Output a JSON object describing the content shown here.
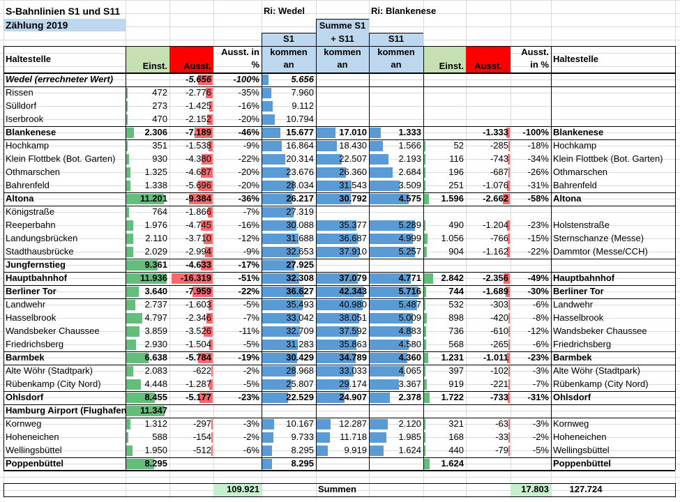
{
  "title_line1": "S-Bahnlinien S1 und S11",
  "title_line2": "Zählung 2019",
  "dir_left": "Ri:  Wedel",
  "dir_right": "Ri:  Blankenese",
  "headers": {
    "haltestelle": "Haltestelle",
    "einst": "Einst.",
    "ausst": "Ausst.",
    "ausst_pct": "Ausst. in %",
    "s1": "S1",
    "summe": "Summe S1 + S11",
    "s11": "S11",
    "kommen_an": "kommen an"
  },
  "colors": {
    "green_header": "#c6e0b4",
    "red_header": "#ff0000",
    "blue_header": "#bdd7ee",
    "sum_green": "#c6efce",
    "bar_green": "#63be7b",
    "bar_red": "#f8696b",
    "bar_blue": "#5a9bd5"
  },
  "rows": [
    {
      "l": "Wedel (errechneter Wert)",
      "e": "",
      "a": "-5.656",
      "p": "-100%",
      "s1": "5.656",
      "sum": "",
      "s11": "",
      "e2": "",
      "a2": "",
      "p2": "",
      "r": "",
      "b": true,
      "i": true,
      "ev": 0,
      "av": 5656,
      "s1v": 5656,
      "sumv": 0,
      "s11v": 0,
      "e2v": 0,
      "a2v": 0
    },
    {
      "l": "Rissen",
      "e": "472",
      "a": "-2.776",
      "p": "-35%",
      "s1": "7.960",
      "sum": "",
      "s11": "",
      "e2": "",
      "a2": "",
      "p2": "",
      "r": "",
      "ev": 472,
      "av": 2776,
      "s1v": 7960,
      "sumv": 0,
      "s11v": 0,
      "e2v": 0,
      "a2v": 0
    },
    {
      "l": "Sülldorf",
      "e": "273",
      "a": "-1.425",
      "p": "-16%",
      "s1": "9.112",
      "sum": "",
      "s11": "",
      "e2": "",
      "a2": "",
      "p2": "",
      "r": "",
      "ev": 273,
      "av": 1425,
      "s1v": 9112,
      "sumv": 0,
      "s11v": 0,
      "e2v": 0,
      "a2v": 0
    },
    {
      "l": "Iserbrook",
      "e": "470",
      "a": "-2.152",
      "p": "-20%",
      "s1": "10.794",
      "sum": "",
      "s11": "",
      "e2": "",
      "a2": "",
      "p2": "",
      "r": "",
      "ev": 470,
      "av": 2152,
      "s1v": 10794,
      "sumv": 0,
      "s11v": 0,
      "e2v": 0,
      "a2v": 0
    },
    {
      "l": "Blankenese",
      "e": "2.306",
      "a": "-7.189",
      "p": "-46%",
      "s1": "15.677",
      "sum": "17.010",
      "s11": "1.333",
      "e2": "",
      "a2": "-1.333",
      "p2": "-100%",
      "r": "Blankenese",
      "b": true,
      "ev": 2306,
      "av": 7189,
      "s1v": 15677,
      "sumv": 17010,
      "s11v": 1333,
      "e2v": 0,
      "a2v": 1333
    },
    {
      "l": "Hochkamp",
      "e": "351",
      "a": "-1.538",
      "p": "-9%",
      "s1": "16.864",
      "sum": "18.430",
      "s11": "1.566",
      "e2": "52",
      "a2": "-285",
      "p2": "-18%",
      "r": "Hochkamp",
      "ev": 351,
      "av": 1538,
      "s1v": 16864,
      "sumv": 18430,
      "s11v": 1566,
      "e2v": 52,
      "a2v": 285
    },
    {
      "l": "Klein Flottbek (Bot. Garten)",
      "e": "930",
      "a": "-4.380",
      "p": "-22%",
      "s1": "20.314",
      "sum": "22.507",
      "s11": "2.193",
      "e2": "116",
      "a2": "-743",
      "p2": "-34%",
      "r": "Klein Flottbek (Bot. Garten)",
      "ev": 930,
      "av": 4380,
      "s1v": 20314,
      "sumv": 22507,
      "s11v": 2193,
      "e2v": 116,
      "a2v": 743
    },
    {
      "l": "Othmarschen",
      "e": "1.325",
      "a": "-4.687",
      "p": "-20%",
      "s1": "23.676",
      "sum": "26.360",
      "s11": "2.684",
      "e2": "196",
      "a2": "-687",
      "p2": "-26%",
      "r": "Othmarschen",
      "ev": 1325,
      "av": 4687,
      "s1v": 23676,
      "sumv": 26360,
      "s11v": 2684,
      "e2v": 196,
      "a2v": 687
    },
    {
      "l": "Bahrenfeld",
      "e": "1.338",
      "a": "-5.696",
      "p": "-20%",
      "s1": "28.034",
      "sum": "31.543",
      "s11": "3.509",
      "e2": "251",
      "a2": "-1.076",
      "p2": "-31%",
      "r": "Bahrenfeld",
      "ev": 1338,
      "av": 5696,
      "s1v": 28034,
      "sumv": 31543,
      "s11v": 3509,
      "e2v": 251,
      "a2v": 1076
    },
    {
      "l": "Altona",
      "e": "11.201",
      "a": "-9.384",
      "p": "-36%",
      "s1": "26.217",
      "sum": "30.792",
      "s11": "4.575",
      "e2": "1.596",
      "a2": "-2.662",
      "p2": "-58%",
      "r": "Altona",
      "b": true,
      "ev": 11201,
      "av": 9384,
      "s1v": 26217,
      "sumv": 30792,
      "s11v": 4575,
      "e2v": 1596,
      "a2v": 2662
    },
    {
      "l": "Königstraße",
      "e": "764",
      "a": "-1.866",
      "p": "-7%",
      "s1": "27.319",
      "sum": "",
      "s11": "",
      "e2": "",
      "a2": "",
      "p2": "",
      "r": "",
      "ev": 764,
      "av": 1866,
      "s1v": 27319,
      "sumv": 0,
      "s11v": 0,
      "e2v": 0,
      "a2v": 0
    },
    {
      "l": "Reeperbahn",
      "e": "1.976",
      "a": "-4.745",
      "p": "-16%",
      "s1": "30.088",
      "sum": "35.377",
      "s11": "5.289",
      "e2": "490",
      "a2": "-1.204",
      "p2": "-23%",
      "r": "Holstenstraße",
      "ev": 1976,
      "av": 4745,
      "s1v": 30088,
      "sumv": 35377,
      "s11v": 5289,
      "e2v": 490,
      "a2v": 1204
    },
    {
      "l": "Landungsbrücken",
      "e": "2.110",
      "a": "-3.710",
      "p": "-12%",
      "s1": "31.688",
      "sum": "36.687",
      "s11": "4.999",
      "e2": "1.056",
      "a2": "-766",
      "p2": "-15%",
      "r": "Sternschanze (Messe)",
      "ev": 2110,
      "av": 3710,
      "s1v": 31688,
      "sumv": 36687,
      "s11v": 4999,
      "e2v": 1056,
      "a2v": 766
    },
    {
      "l": "Stadthausbrücke",
      "e": "2.029",
      "a": "-2.994",
      "p": "-9%",
      "s1": "32.653",
      "sum": "37.910",
      "s11": "5.257",
      "e2": "904",
      "a2": "-1.162",
      "p2": "-22%",
      "r": "Dammtor (Messe/CCH)",
      "ev": 2029,
      "av": 2994,
      "s1v": 32653,
      "sumv": 37910,
      "s11v": 5257,
      "e2v": 904,
      "a2v": 1162
    },
    {
      "l": "Jungfernstieg",
      "e": "9.361",
      "a": "-4.633",
      "p": "-17%",
      "s1": "27.925",
      "sum": "",
      "s11": "",
      "e2": "",
      "a2": "",
      "p2": "",
      "r": "",
      "b": true,
      "ev": 9361,
      "av": 4633,
      "s1v": 27925,
      "sumv": 0,
      "s11v": 0,
      "e2v": 0,
      "a2v": 0
    },
    {
      "l": "Hauptbahnhof",
      "e": "11.936",
      "a": "-16.319",
      "p": "-51%",
      "s1": "32.308",
      "sum": "37.079",
      "s11": "4.771",
      "e2": "2.842",
      "a2": "-2.356",
      "p2": "-49%",
      "r": "Hauptbahnhof",
      "b": true,
      "ev": 11936,
      "av": 16319,
      "s1v": 32308,
      "sumv": 37079,
      "s11v": 4771,
      "e2v": 2842,
      "a2v": 2356
    },
    {
      "l": "Berliner Tor",
      "e": "3.640",
      "a": "-7.959",
      "p": "-22%",
      "s1": "36.627",
      "sum": "42.343",
      "s11": "5.716",
      "e2": "744",
      "a2": "-1.689",
      "p2": "-30%",
      "r": "Berliner Tor",
      "b": true,
      "ev": 3640,
      "av": 7959,
      "s1v": 36627,
      "sumv": 42343,
      "s11v": 5716,
      "e2v": 744,
      "a2v": 1689
    },
    {
      "l": "Landwehr",
      "e": "2.737",
      "a": "-1.603",
      "p": "-5%",
      "s1": "35.493",
      "sum": "40.980",
      "s11": "5.487",
      "e2": "532",
      "a2": "-303",
      "p2": "-6%",
      "r": "Landwehr",
      "ev": 2737,
      "av": 1603,
      "s1v": 35493,
      "sumv": 40980,
      "s11v": 5487,
      "e2v": 532,
      "a2v": 303
    },
    {
      "l": "Hasselbrook",
      "e": "4.797",
      "a": "-2.346",
      "p": "-7%",
      "s1": "33.042",
      "sum": "38.051",
      "s11": "5.009",
      "e2": "898",
      "a2": "-420",
      "p2": "-8%",
      "r": "Hasselbrook",
      "ev": 4797,
      "av": 2346,
      "s1v": 33042,
      "sumv": 38051,
      "s11v": 5009,
      "e2v": 898,
      "a2v": 420
    },
    {
      "l": "Wandsbeker Chaussee",
      "e": "3.859",
      "a": "-3.526",
      "p": "-11%",
      "s1": "32.709",
      "sum": "37.592",
      "s11": "4.883",
      "e2": "736",
      "a2": "-610",
      "p2": "-12%",
      "r": "Wandsbeker Chaussee",
      "ev": 3859,
      "av": 3526,
      "s1v": 32709,
      "sumv": 37592,
      "s11v": 4883,
      "e2v": 736,
      "a2v": 610
    },
    {
      "l": "Friedrichsberg",
      "e": "2.930",
      "a": "-1.504",
      "p": "-5%",
      "s1": "31.283",
      "sum": "35.863",
      "s11": "4.580",
      "e2": "568",
      "a2": "-265",
      "p2": "-6%",
      "r": "Friedrichsberg",
      "ev": 2930,
      "av": 1504,
      "s1v": 31283,
      "sumv": 35863,
      "s11v": 4580,
      "e2v": 568,
      "a2v": 265
    },
    {
      "l": "Barmbek",
      "e": "6.638",
      "a": "-5.784",
      "p": "-19%",
      "s1": "30.429",
      "sum": "34.789",
      "s11": "4.360",
      "e2": "1.231",
      "a2": "-1.011",
      "p2": "-23%",
      "r": "Barmbek",
      "b": true,
      "ev": 6638,
      "av": 5784,
      "s1v": 30429,
      "sumv": 34789,
      "s11v": 4360,
      "e2v": 1231,
      "a2v": 1011
    },
    {
      "l": "Alte Wöhr (Stadtpark)",
      "e": "2.083",
      "a": "-622",
      "p": "-2%",
      "s1": "28.968",
      "sum": "33.033",
      "s11": "4.065",
      "e2": "397",
      "a2": "-102",
      "p2": "-3%",
      "r": "Alte Wöhr (Stadtpark)",
      "ev": 2083,
      "av": 622,
      "s1v": 28968,
      "sumv": 33033,
      "s11v": 4065,
      "e2v": 397,
      "a2v": 102
    },
    {
      "l": "Rübenkamp (City Nord)",
      "e": "4.448",
      "a": "-1.287",
      "p": "-5%",
      "s1": "25.807",
      "sum": "29.174",
      "s11": "3.367",
      "e2": "919",
      "a2": "-221",
      "p2": "-7%",
      "r": "Rübenkamp (City Nord)",
      "ev": 4448,
      "av": 1287,
      "s1v": 25807,
      "sumv": 29174,
      "s11v": 3367,
      "e2v": 919,
      "a2v": 221
    },
    {
      "l": "Ohlsdorf",
      "e": "8.455",
      "a": "-5.177",
      "p": "-23%",
      "s1": "22.529",
      "sum": "24.907",
      "s11": "2.378",
      "e2": "1.722",
      "a2": "-733",
      "p2": "-31%",
      "r": "Ohlsdorf",
      "b": true,
      "ev": 8455,
      "av": 5177,
      "s1v": 22529,
      "sumv": 24907,
      "s11v": 2378,
      "e2v": 1722,
      "a2v": 733
    },
    {
      "l": "Hamburg Airport (Flughafen)",
      "e": "11.347",
      "a": "",
      "p": "",
      "s1": "",
      "sum": "",
      "s11": "",
      "e2": "",
      "a2": "",
      "p2": "",
      "r": "",
      "b": true,
      "ev": 11347,
      "av": 0,
      "s1v": 0,
      "sumv": 0,
      "s11v": 0,
      "e2v": 0,
      "a2v": 0
    },
    {
      "l": "Kornweg",
      "e": "1.312",
      "a": "-297",
      "p": "-3%",
      "s1": "10.167",
      "sum": "12.287",
      "s11": "2.120",
      "e2": "321",
      "a2": "-63",
      "p2": "-3%",
      "r": "Kornweg",
      "ev": 1312,
      "av": 297,
      "s1v": 10167,
      "sumv": 12287,
      "s11v": 2120,
      "e2v": 321,
      "a2v": 63
    },
    {
      "l": "Hoheneichen",
      "e": "588",
      "a": "-154",
      "p": "-2%",
      "s1": "9.733",
      "sum": "11.718",
      "s11": "1.985",
      "e2": "168",
      "a2": "-33",
      "p2": "-2%",
      "r": "Hoheneichen",
      "ev": 588,
      "av": 154,
      "s1v": 9733,
      "sumv": 11718,
      "s11v": 1985,
      "e2v": 168,
      "a2v": 33
    },
    {
      "l": "Wellingsbüttel",
      "e": "1.950",
      "a": "-512",
      "p": "-6%",
      "s1": "8.295",
      "sum": "9.919",
      "s11": "1.624",
      "e2": "440",
      "a2": "-79",
      "p2": "-5%",
      "r": "Wellingsbüttel",
      "ev": 1950,
      "av": 512,
      "s1v": 8295,
      "sumv": 9919,
      "s11v": 1624,
      "e2v": 440,
      "a2v": 79
    },
    {
      "l": "Poppenbüttel",
      "e": "8.295",
      "a": "",
      "p": "",
      "s1": "8.295",
      "sum": "",
      "s11": "",
      "e2": "1.624",
      "a2": "",
      "p2": "",
      "r": "Poppenbüttel",
      "b": true,
      "ev": 8295,
      "av": 0,
      "s1v": 8295,
      "sumv": 0,
      "s11v": 0,
      "e2v": 1624,
      "a2v": 0
    }
  ],
  "totals": {
    "s1_sum": "109.921",
    "label": "Summen",
    "s11_sum": "17.803",
    "grand": "127.724"
  },
  "scale_max": {
    "einst": 12000,
    "ausst": 16500,
    "kommen": 45000,
    "s11": 6000
  }
}
